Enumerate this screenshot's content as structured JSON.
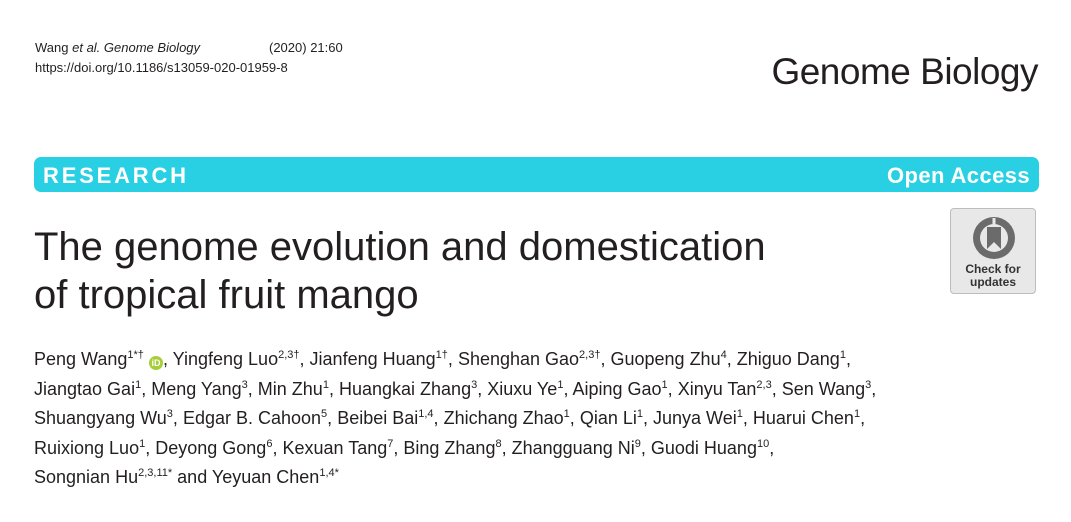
{
  "citation": {
    "authors_short": "Wang",
    "et_al": "et al.",
    "journal": "Genome Biology",
    "year_vol": "(2020) 21:60",
    "doi": "https://doi.org/10.1186/s13059-020-01959-8"
  },
  "journal_logo": "Genome Biology",
  "bar": {
    "type": "RESEARCH",
    "access": "Open Access"
  },
  "title": {
    "line1": "The genome evolution and domestication",
    "line2": "of tropical fruit mango"
  },
  "check_updates": {
    "line1": "Check for",
    "line2": "updates"
  },
  "orcid_glyph": "iD",
  "authors": [
    {
      "name": "Peng Wang",
      "sup": "1*†",
      "orcid": true
    },
    {
      "name": "Yingfeng Luo",
      "sup": "2,3†"
    },
    {
      "name": "Jianfeng Huang",
      "sup": "1†"
    },
    {
      "name": "Shenghan Gao",
      "sup": "2,3†"
    },
    {
      "name": "Guopeng Zhu",
      "sup": "4"
    },
    {
      "name": "Zhiguo Dang",
      "sup": "1"
    },
    {
      "name": "Jiangtao Gai",
      "sup": "1",
      "break_before": true
    },
    {
      "name": "Meng Yang",
      "sup": "3"
    },
    {
      "name": "Min Zhu",
      "sup": "1"
    },
    {
      "name": "Huangkai Zhang",
      "sup": "3"
    },
    {
      "name": "Xiuxu Ye",
      "sup": "1"
    },
    {
      "name": "Aiping Gao",
      "sup": "1"
    },
    {
      "name": "Xinyu Tan",
      "sup": "2,3"
    },
    {
      "name": "Sen Wang",
      "sup": "3"
    },
    {
      "name": "Shuangyang Wu",
      "sup": "3",
      "break_before": true
    },
    {
      "name": "Edgar B. Cahoon",
      "sup": "5"
    },
    {
      "name": "Beibei Bai",
      "sup": "1,4"
    },
    {
      "name": "Zhichang Zhao",
      "sup": "1"
    },
    {
      "name": "Qian Li",
      "sup": "1"
    },
    {
      "name": "Junya Wei",
      "sup": "1"
    },
    {
      "name": "Huarui Chen",
      "sup": "1"
    },
    {
      "name": "Ruixiong Luo",
      "sup": "1",
      "break_before": true
    },
    {
      "name": "Deyong Gong",
      "sup": "6"
    },
    {
      "name": "Kexuan Tang",
      "sup": "7"
    },
    {
      "name": "Bing Zhang",
      "sup": "8"
    },
    {
      "name": "Zhangguang Ni",
      "sup": "9"
    },
    {
      "name": "Guodi Huang",
      "sup": "10"
    },
    {
      "name": "Songnian Hu",
      "sup": "2,3,11*",
      "break_before": true
    },
    {
      "name": "Yeyuan Chen",
      "sup": "1,4*",
      "prefix": "and "
    }
  ]
}
